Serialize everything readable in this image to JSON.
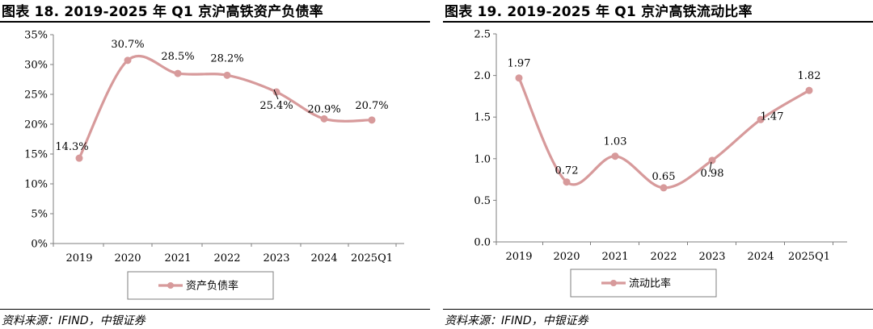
{
  "left": {
    "title": "图表 18. 2019-2025 年 Q1 京沪高铁资产负债率",
    "source": "资料来源：IFIND，中银证券"
  },
  "right": {
    "title": "图表 19. 2019-2025 年 Q1 京沪高铁流动比率",
    "source": "资料来源：IFIND，中银证券"
  },
  "chart_data": [
    {
      "type": "line",
      "title": "图表 18. 2019-2025 年 Q1 京沪高铁资产负债率",
      "categories": [
        "2019",
        "2020",
        "2021",
        "2022",
        "2023",
        "2024",
        "2025Q1"
      ],
      "series": [
        {
          "name": "资产负债率",
          "values": [
            14.3,
            30.7,
            28.5,
            28.2,
            25.4,
            20.9,
            20.7
          ]
        }
      ],
      "data_labels": [
        "14.3%",
        "30.7%",
        "28.5%",
        "28.2%",
        "25.4%",
        "20.9%",
        "20.7%"
      ],
      "yticks": [
        "0%",
        "5%",
        "10%",
        "15%",
        "20%",
        "25%",
        "30%",
        "35%"
      ],
      "ylim": [
        0,
        35
      ],
      "unit": "%",
      "grid": false,
      "legend_position": "bottom",
      "line_color": "#D79A9B"
    },
    {
      "type": "line",
      "title": "图表 19. 2019-2025 年 Q1 京沪高铁流动比率",
      "categories": [
        "2019",
        "2020",
        "2021",
        "2022",
        "2023",
        "2024",
        "2025Q1"
      ],
      "series": [
        {
          "name": "流动比率",
          "values": [
            1.97,
            0.72,
            1.03,
            0.65,
            0.98,
            1.47,
            1.82
          ]
        }
      ],
      "data_labels": [
        "1.97",
        "0.72",
        "1.03",
        "0.65",
        "0.98",
        "1.47",
        "1.82"
      ],
      "yticks": [
        "0.0",
        "0.5",
        "1.0",
        "1.5",
        "2.0",
        "2.5"
      ],
      "ylim": [
        0,
        2.5
      ],
      "unit": "",
      "grid": false,
      "legend_position": "bottom",
      "line_color": "#D79A9B"
    }
  ]
}
